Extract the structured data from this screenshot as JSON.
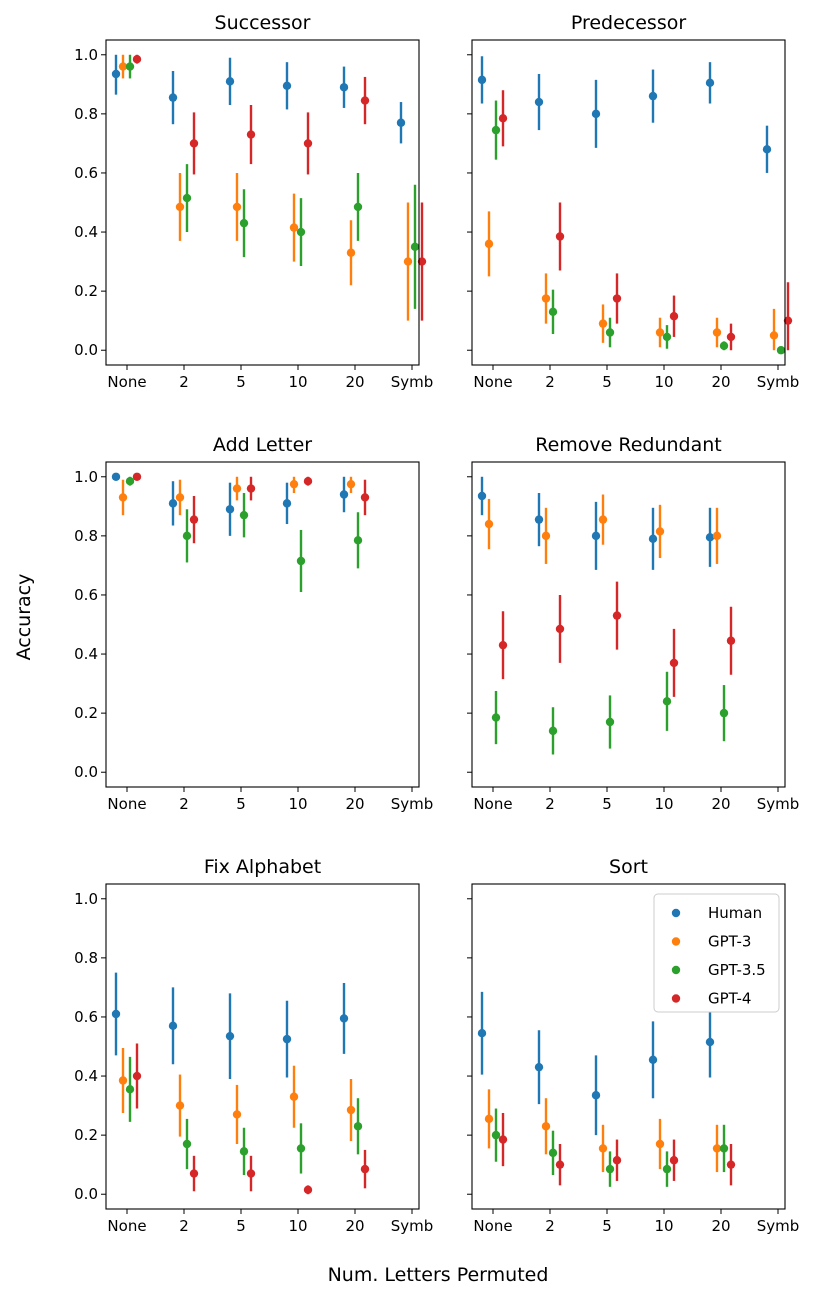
{
  "figure": {
    "ylabel": "Accuracy",
    "xlabel": "Num. Letters Permuted",
    "colors": {
      "Human": "#1f77b4",
      "GPT-3": "#ff7f0e",
      "GPT-3.5": "#2ca02c",
      "GPT-4": "#d62728"
    },
    "legend": {
      "entries": [
        "Human",
        "GPT-3",
        "GPT-3.5",
        "GPT-4"
      ],
      "placement": "top-right of Sort panel"
    }
  },
  "chart_data": [
    {
      "type": "scatter-errorbar",
      "title": "Successor",
      "categories": [
        "None",
        "2",
        "5",
        "10",
        "20",
        "Symb"
      ],
      "ylim": [
        -0.05,
        1.05
      ],
      "yticks": [
        "0.0",
        "0.2",
        "0.4",
        "0.6",
        "0.8",
        "1.0"
      ],
      "series": [
        {
          "name": "Human",
          "values": [
            0.935,
            0.855,
            0.91,
            0.895,
            0.89,
            0.77
          ],
          "errors": [
            0.07,
            0.09,
            0.08,
            0.08,
            0.07,
            0.07
          ]
        },
        {
          "name": "GPT-3",
          "values": [
            0.96,
            0.485,
            0.485,
            0.415,
            0.33,
            0.3
          ],
          "errors": [
            0.04,
            0.115,
            0.115,
            0.115,
            0.11,
            0.2
          ]
        },
        {
          "name": "GPT-3.5",
          "values": [
            0.96,
            0.515,
            0.43,
            0.4,
            0.485,
            0.35
          ],
          "errors": [
            0.04,
            0.115,
            0.115,
            0.115,
            0.115,
            0.21
          ]
        },
        {
          "name": "GPT-4",
          "values": [
            0.985,
            0.7,
            0.73,
            0.7,
            0.845,
            0.3
          ],
          "errors": [
            0.015,
            0.105,
            0.1,
            0.105,
            0.08,
            0.2
          ]
        }
      ]
    },
    {
      "type": "scatter-errorbar",
      "title": "Predecessor",
      "categories": [
        "None",
        "2",
        "5",
        "10",
        "20",
        "Symb"
      ],
      "ylim": [
        -0.05,
        1.05
      ],
      "series": [
        {
          "name": "Human",
          "values": [
            0.915,
            0.84,
            0.8,
            0.86,
            0.905,
            0.68
          ],
          "errors": [
            0.08,
            0.095,
            0.115,
            0.09,
            0.07,
            0.08
          ]
        },
        {
          "name": "GPT-3",
          "values": [
            0.36,
            0.175,
            0.09,
            0.06,
            0.06,
            0.05
          ],
          "errors": [
            0.11,
            0.085,
            0.065,
            0.05,
            0.05,
            0.09
          ]
        },
        {
          "name": "GPT-3.5",
          "values": [
            0.745,
            0.13,
            0.06,
            0.045,
            0.015,
            0.0
          ],
          "errors": [
            0.1,
            0.075,
            0.05,
            0.04,
            0.015,
            0.0
          ]
        },
        {
          "name": "GPT-4",
          "values": [
            0.785,
            0.385,
            0.175,
            0.115,
            0.045,
            0.1
          ],
          "errors": [
            0.095,
            0.115,
            0.085,
            0.07,
            0.045,
            0.13
          ]
        }
      ]
    },
    {
      "type": "scatter-errorbar",
      "title": "Add Letter",
      "categories": [
        "None",
        "2",
        "5",
        "10",
        "20",
        "Symb"
      ],
      "ylim": [
        -0.05,
        1.05
      ],
      "yticks": [
        "0.0",
        "0.2",
        "0.4",
        "0.6",
        "0.8",
        "1.0"
      ],
      "series": [
        {
          "name": "Human",
          "values": [
            1.0,
            0.91,
            0.89,
            0.91,
            0.94,
            null
          ],
          "errors": [
            0.0,
            0.075,
            0.09,
            0.07,
            0.06,
            null
          ]
        },
        {
          "name": "GPT-3",
          "values": [
            0.93,
            0.93,
            0.96,
            0.975,
            0.975,
            null
          ],
          "errors": [
            0.06,
            0.06,
            0.04,
            0.03,
            0.03,
            null
          ]
        },
        {
          "name": "GPT-3.5",
          "values": [
            0.985,
            0.8,
            0.87,
            0.715,
            0.785,
            null
          ],
          "errors": [
            0.015,
            0.09,
            0.075,
            0.105,
            0.095,
            null
          ]
        },
        {
          "name": "GPT-4",
          "values": [
            1.0,
            0.855,
            0.96,
            0.985,
            0.93,
            null
          ],
          "errors": [
            0.0,
            0.08,
            0.04,
            0.015,
            0.06,
            null
          ]
        }
      ]
    },
    {
      "type": "scatter-errorbar",
      "title": "Remove Redundant",
      "categories": [
        "None",
        "2",
        "5",
        "10",
        "20",
        "Symb"
      ],
      "ylim": [
        -0.05,
        1.05
      ],
      "series": [
        {
          "name": "Human",
          "values": [
            0.935,
            0.855,
            0.8,
            0.79,
            0.795,
            null
          ],
          "errors": [
            0.065,
            0.09,
            0.115,
            0.105,
            0.1,
            null
          ]
        },
        {
          "name": "GPT-3",
          "values": [
            0.84,
            0.8,
            0.855,
            0.815,
            0.8,
            null
          ],
          "errors": [
            0.085,
            0.095,
            0.085,
            0.09,
            0.095,
            null
          ]
        },
        {
          "name": "GPT-3.5",
          "values": [
            0.185,
            0.14,
            0.17,
            0.24,
            0.2,
            null
          ],
          "errors": [
            0.09,
            0.08,
            0.09,
            0.1,
            0.095,
            null
          ]
        },
        {
          "name": "GPT-4",
          "values": [
            0.43,
            0.485,
            0.53,
            0.37,
            0.445,
            null
          ],
          "errors": [
            0.115,
            0.115,
            0.115,
            0.115,
            0.115,
            null
          ]
        }
      ]
    },
    {
      "type": "scatter-errorbar",
      "title": "Fix Alphabet",
      "categories": [
        "None",
        "2",
        "5",
        "10",
        "20",
        "Symb"
      ],
      "ylim": [
        -0.05,
        1.05
      ],
      "yticks": [
        "0.0",
        "0.2",
        "0.4",
        "0.6",
        "0.8",
        "1.0"
      ],
      "series": [
        {
          "name": "Human",
          "values": [
            0.61,
            0.57,
            0.535,
            0.525,
            0.595,
            null
          ],
          "errors": [
            0.14,
            0.13,
            0.145,
            0.13,
            0.12,
            null
          ]
        },
        {
          "name": "GPT-3",
          "values": [
            0.385,
            0.3,
            0.27,
            0.33,
            0.285,
            null
          ],
          "errors": [
            0.11,
            0.105,
            0.1,
            0.105,
            0.105,
            null
          ]
        },
        {
          "name": "GPT-3.5",
          "values": [
            0.355,
            0.17,
            0.145,
            0.155,
            0.23,
            null
          ],
          "errors": [
            0.11,
            0.085,
            0.08,
            0.085,
            0.095,
            null
          ]
        },
        {
          "name": "GPT-4",
          "values": [
            0.4,
            0.07,
            0.07,
            0.015,
            0.085,
            null
          ],
          "errors": [
            0.11,
            0.06,
            0.06,
            0.015,
            0.065,
            null
          ]
        }
      ]
    },
    {
      "type": "scatter-errorbar",
      "title": "Sort",
      "categories": [
        "None",
        "2",
        "5",
        "10",
        "20",
        "Symb"
      ],
      "ylim": [
        -0.05,
        1.05
      ],
      "legend": [
        "Human",
        "GPT-3",
        "GPT-3.5",
        "GPT-4"
      ],
      "series": [
        {
          "name": "Human",
          "values": [
            0.545,
            0.43,
            0.335,
            0.455,
            0.515,
            null
          ],
          "errors": [
            0.14,
            0.125,
            0.135,
            0.13,
            0.12,
            null
          ]
        },
        {
          "name": "GPT-3",
          "values": [
            0.255,
            0.23,
            0.155,
            0.17,
            0.155,
            null
          ],
          "errors": [
            0.1,
            0.095,
            0.08,
            0.085,
            0.08,
            null
          ]
        },
        {
          "name": "GPT-3.5",
          "values": [
            0.2,
            0.14,
            0.085,
            0.085,
            0.155,
            null
          ],
          "errors": [
            0.09,
            0.075,
            0.06,
            0.06,
            0.08,
            null
          ]
        },
        {
          "name": "GPT-4",
          "values": [
            0.185,
            0.1,
            0.115,
            0.115,
            0.1,
            null
          ],
          "errors": [
            0.09,
            0.07,
            0.07,
            0.07,
            0.07,
            null
          ]
        }
      ]
    }
  ]
}
